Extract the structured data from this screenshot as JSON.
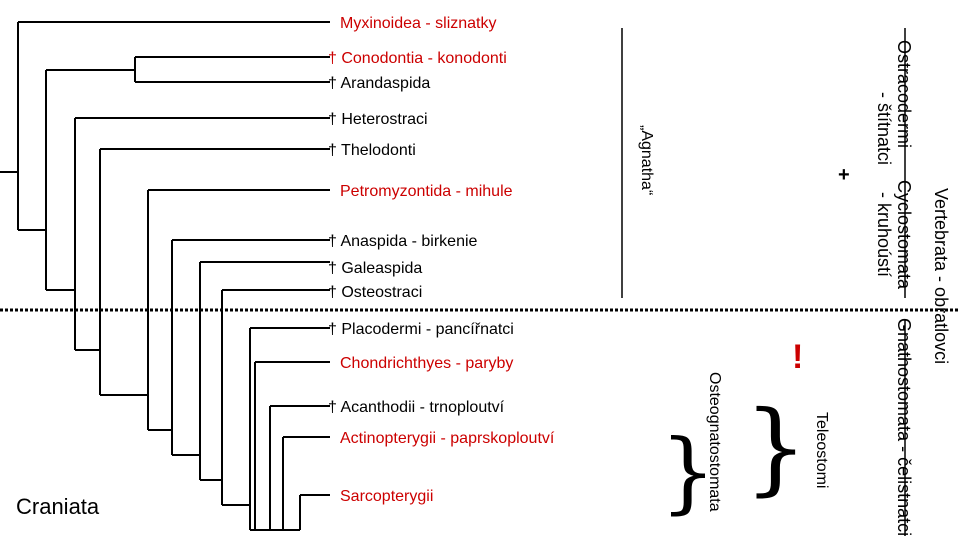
{
  "taxa": [
    {
      "id": "myxinoidea",
      "text": "Myxinoidea - sliznatky",
      "color": "#cc0000"
    },
    {
      "id": "conodontia",
      "text": "† Conodontia - konodonti",
      "color": "#cc0000"
    },
    {
      "id": "arandaspida",
      "text": "† Arandaspida",
      "color": "#000000"
    },
    {
      "id": "heterostraci",
      "text": "† Heterostraci",
      "color": "#000000"
    },
    {
      "id": "thelodonti",
      "text": "† Thelodonti",
      "color": "#000000"
    },
    {
      "id": "petromyzontida",
      "text": "Petromyzontida - mihule",
      "color": "#cc0000"
    },
    {
      "id": "anaspida",
      "text": "† Anaspida - birkenie",
      "color": "#000000"
    },
    {
      "id": "galeaspida",
      "text": "† Galeaspida",
      "color": "#000000"
    },
    {
      "id": "osteostraci",
      "text": "† Osteostraci",
      "color": "#000000"
    },
    {
      "id": "placodermi",
      "text": "† Placodermi - pancířnatci",
      "color": "#000000"
    },
    {
      "id": "chondrichthyes",
      "text": "Chondrichthyes - paryby",
      "color": "#cc0000"
    },
    {
      "id": "acanthodii",
      "text": "† Acanthodii - trnoploutví",
      "color": "#000000"
    },
    {
      "id": "actinopterygii",
      "text": "Actinopterygii - paprskoploutví",
      "color": "#cc0000"
    },
    {
      "id": "sarcopterygii",
      "text": "Sarcopterygii",
      "color": "#cc0000"
    }
  ],
  "root_label": "Craniata",
  "groups": {
    "agnatha": "„Agnatha“",
    "ostracodermi_line1": "Ostracodermi",
    "ostracodermi_line2": "- štítnatci",
    "cyclostomata_line1": "Cyclostomata",
    "cyclostomata_line2": "- kruhoústí",
    "gnathostomata": "Gnathostomata - čelistnatci",
    "vertebrata": "Vertebrata - obratlovci",
    "osteognatostomata": "Osteognatostomata",
    "teleostomi": "Teleostomi"
  },
  "marks": {
    "plus": "+",
    "exclamation": "!",
    "brace": "}"
  },
  "colors": {
    "red": "#cc0000",
    "black": "#000000"
  }
}
